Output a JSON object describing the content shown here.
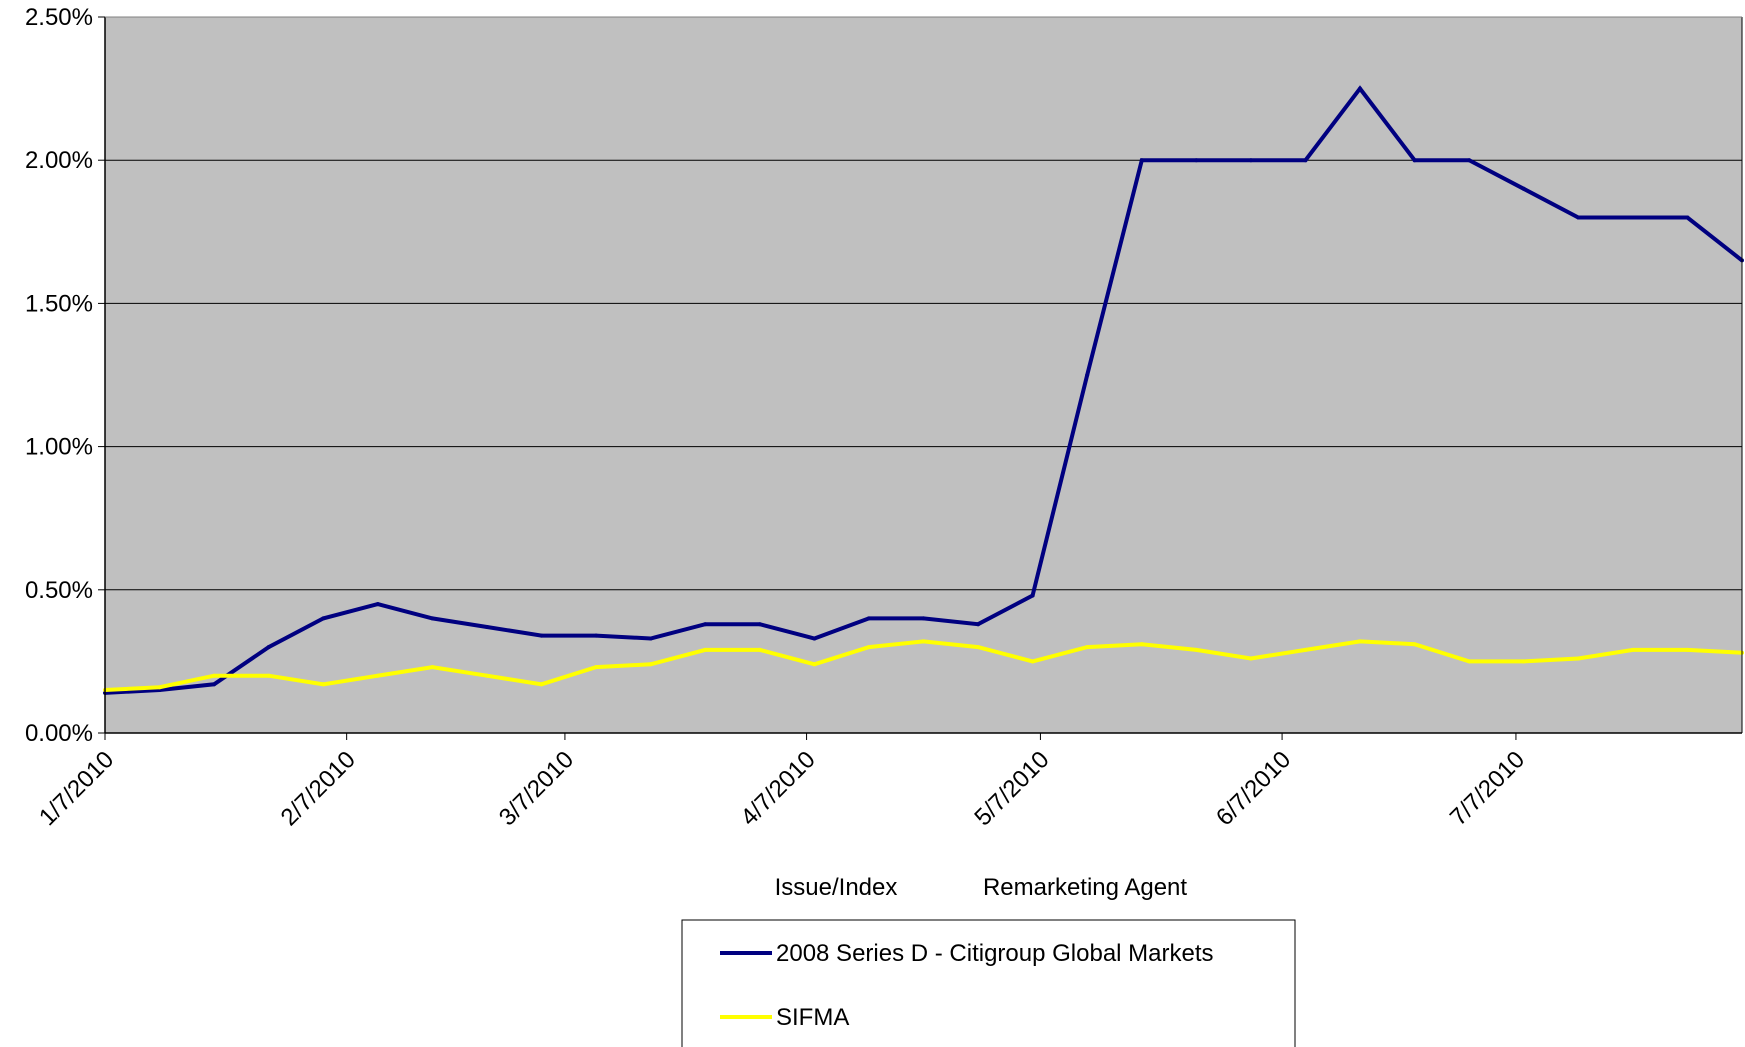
{
  "chart_data": {
    "type": "line",
    "title": "",
    "xlabel": "",
    "ylabel": "",
    "caption_left": "Issue/Index",
    "caption_right": "Remarketing Agent",
    "ylim": [
      0,
      2.5
    ],
    "xlim": [
      "2010-01-07",
      "2010-08-05"
    ],
    "grid": true,
    "legend_position": "bottom",
    "colors": {
      "plot_background": "#C0C0C0",
      "gridline": "#000000"
    },
    "y_ticks": [
      "0.00%",
      "0.50%",
      "1.00%",
      "1.50%",
      "2.00%",
      "2.50%"
    ],
    "y_tick_values": [
      0,
      0.5,
      1.0,
      1.5,
      2.0,
      2.5
    ],
    "x_ticks": [
      "1/7/2010",
      "2/7/2010",
      "3/7/2010",
      "4/7/2010",
      "5/7/2010",
      "6/7/2010",
      "7/7/2010"
    ],
    "x_tick_values": [
      "2010-01-07",
      "2010-02-07",
      "2010-03-07",
      "2010-04-07",
      "2010-05-07",
      "2010-06-07",
      "2010-07-07"
    ],
    "x": [
      "2010-01-07",
      "2010-01-14",
      "2010-01-21",
      "2010-01-28",
      "2010-02-04",
      "2010-02-11",
      "2010-02-18",
      "2010-02-25",
      "2010-03-04",
      "2010-03-11",
      "2010-03-18",
      "2010-03-25",
      "2010-04-01",
      "2010-04-08",
      "2010-04-15",
      "2010-04-22",
      "2010-04-29",
      "2010-05-06",
      "2010-05-13",
      "2010-05-20",
      "2010-05-27",
      "2010-06-03",
      "2010-06-10",
      "2010-06-17",
      "2010-06-24",
      "2010-07-01",
      "2010-07-08",
      "2010-07-15",
      "2010-07-22",
      "2010-07-29",
      "2010-08-05"
    ],
    "series": [
      {
        "name": "2008 Series D - Citigroup Global Markets",
        "color": "#000080",
        "values": [
          0.14,
          0.15,
          0.17,
          0.3,
          0.4,
          0.45,
          0.4,
          0.37,
          0.34,
          0.34,
          0.33,
          0.38,
          0.38,
          0.33,
          0.4,
          0.4,
          0.38,
          0.48,
          1.25,
          2.0,
          2.0,
          2.0,
          2.0,
          2.25,
          2.0,
          2.0,
          1.9,
          1.8,
          1.8,
          1.8,
          1.65
        ]
      },
      {
        "name": "SIFMA",
        "color": "#FFFF00",
        "values": [
          0.15,
          0.16,
          0.2,
          0.2,
          0.17,
          0.2,
          0.23,
          0.2,
          0.17,
          0.23,
          0.24,
          0.29,
          0.29,
          0.24,
          0.3,
          0.32,
          0.3,
          0.25,
          0.3,
          0.31,
          0.29,
          0.26,
          0.29,
          0.32,
          0.31,
          0.25,
          0.25,
          0.26,
          0.29,
          0.29,
          0.28
        ]
      }
    ]
  }
}
